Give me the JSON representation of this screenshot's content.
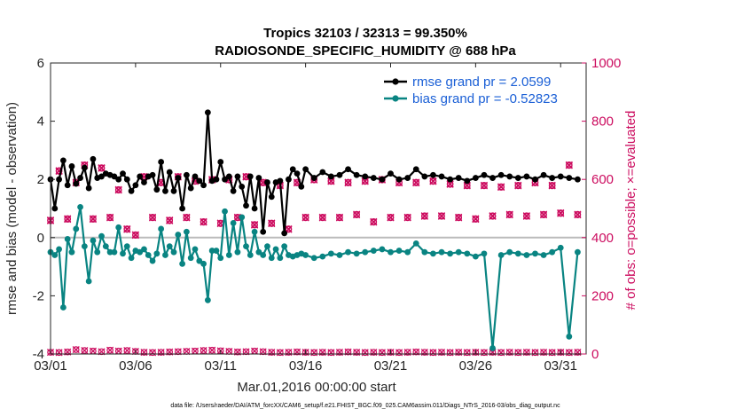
{
  "chart_data": {
    "type": "line",
    "title_line1": "Tropics 32103 / 32313 = 99.350%",
    "title_line2": "RADIOSONDE_SPECIFIC_HUMIDITY @ 688 hPa",
    "ylabel_left": "rmse and bias (model - observation)",
    "ylabel_right": "# of obs: o=possible; ×=evaluated",
    "xlabel": "Mar.01,2016 00:00:00 start",
    "footnote": "data file: /Users/raeder/DAI/ATM_forcXX/CAM6_setup/f.e21.FHIST_BGC.f09_025.CAM6assim.011/Diags_NTrS_2016-03/obs_diag_output.nc",
    "ylim_left": [
      -4,
      6
    ],
    "ylim_right": [
      0,
      1000
    ],
    "xlim": [
      0,
      31.5
    ],
    "x_tick_positions": [
      0,
      5,
      10,
      15,
      20,
      25,
      30
    ],
    "x_tick_labels": [
      "03/01",
      "03/06",
      "03/11",
      "03/16",
      "03/21",
      "03/26",
      "03/31"
    ],
    "y_left_ticks": [
      "-4",
      "-2",
      "0",
      "2",
      "4",
      "6"
    ],
    "y_right_ticks": [
      "0",
      "200",
      "400",
      "600",
      "800",
      "1000"
    ],
    "legend": [
      "rmse grand pr = 2.0599",
      "bias grand pr = -0.52823"
    ],
    "colors": {
      "rmse": "#000000",
      "bias": "#098482",
      "obs": "#cc0c5f",
      "legend_text": "#1a5fd6",
      "zero_line": "#bbbbbb"
    },
    "series": [
      {
        "name": "rmse",
        "x": [
          0.0,
          0.25,
          0.5,
          0.75,
          1.0,
          1.25,
          1.5,
          1.75,
          2.0,
          2.25,
          2.5,
          2.75,
          3.0,
          3.25,
          3.5,
          3.75,
          4.0,
          4.25,
          4.5,
          4.75,
          5.0,
          5.25,
          5.5,
          5.75,
          6.0,
          6.25,
          6.5,
          6.75,
          7.0,
          7.25,
          7.5,
          7.75,
          8.0,
          8.25,
          8.5,
          8.75,
          9.0,
          9.25,
          9.5,
          9.75,
          10.0,
          10.25,
          10.5,
          10.75,
          11.0,
          11.25,
          11.5,
          11.75,
          12.0,
          12.25,
          12.5,
          12.75,
          13.0,
          13.25,
          13.5,
          13.75,
          14.0,
          14.25,
          14.5,
          14.75,
          15.0,
          15.5,
          16.0,
          16.5,
          17.0,
          17.5,
          18.0,
          18.5,
          19.0,
          19.5,
          20.0,
          20.5,
          21.0,
          21.5,
          22.0,
          22.5,
          23.0,
          23.5,
          24.0,
          24.5,
          25.0,
          25.5,
          26.0,
          26.5,
          27.0,
          27.5,
          28.0,
          28.5,
          29.0,
          29.5,
          30.0,
          30.5,
          31.0
        ],
        "values": [
          2.0,
          1.0,
          2.0,
          2.65,
          1.8,
          2.45,
          1.85,
          2.05,
          2.4,
          1.7,
          2.7,
          2.05,
          2.1,
          2.2,
          2.15,
          2.1,
          2.0,
          2.2,
          2.0,
          1.6,
          1.8,
          2.1,
          1.9,
          2.1,
          2.15,
          1.65,
          2.6,
          1.6,
          2.25,
          1.6,
          2.05,
          1.0,
          2.15,
          1.7,
          2.1,
          1.95,
          1.8,
          4.3,
          1.95,
          2.0,
          2.6,
          2.0,
          2.1,
          1.6,
          2.1,
          1.75,
          1.1,
          2.1,
          1.0,
          2.05,
          0.2,
          1.9,
          1.4,
          1.9,
          1.95,
          0.15,
          2.0,
          2.35,
          2.2,
          1.75,
          2.35,
          2.05,
          2.25,
          2.1,
          2.15,
          2.35,
          2.15,
          2.1,
          2.05,
          2.0,
          2.2,
          2.0,
          2.05,
          2.35,
          2.1,
          2.15,
          2.1,
          2.0,
          2.05,
          1.95,
          2.05,
          2.15,
          2.05,
          2.15,
          2.1,
          2.05,
          2.1,
          2.0,
          2.15,
          2.05,
          2.1,
          2.05,
          2.0
        ]
      },
      {
        "name": "bias",
        "x": [
          0.0,
          0.25,
          0.5,
          0.75,
          1.0,
          1.25,
          1.5,
          1.75,
          2.0,
          2.25,
          2.5,
          2.75,
          3.0,
          3.25,
          3.5,
          3.75,
          4.0,
          4.25,
          4.5,
          4.75,
          5.0,
          5.25,
          5.5,
          5.75,
          6.0,
          6.25,
          6.5,
          6.75,
          7.0,
          7.25,
          7.5,
          7.75,
          8.0,
          8.25,
          8.5,
          8.75,
          9.0,
          9.25,
          9.5,
          9.75,
          10.0,
          10.25,
          10.5,
          10.75,
          11.0,
          11.25,
          11.5,
          11.75,
          12.0,
          12.25,
          12.5,
          12.75,
          13.0,
          13.25,
          13.5,
          13.75,
          14.0,
          14.25,
          14.5,
          14.75,
          15.0,
          15.5,
          16.0,
          16.5,
          17.0,
          17.5,
          18.0,
          18.5,
          19.0,
          19.5,
          20.0,
          20.5,
          21.0,
          21.5,
          22.0,
          22.5,
          23.0,
          23.5,
          24.0,
          24.5,
          25.0,
          25.5,
          26.0,
          26.5,
          27.0,
          27.5,
          28.0,
          28.5,
          29.0,
          29.5,
          30.0,
          30.5,
          31.0
        ],
        "values": [
          -0.5,
          -0.6,
          -0.4,
          -2.4,
          -0.05,
          -0.5,
          0.3,
          1.05,
          -0.3,
          -1.5,
          -0.1,
          -0.5,
          0.05,
          -0.3,
          -0.5,
          -0.5,
          0.35,
          -0.55,
          -0.3,
          -0.7,
          -0.45,
          -0.5,
          -0.4,
          -0.6,
          -0.8,
          -0.55,
          0.3,
          -0.6,
          -0.3,
          -0.5,
          0.1,
          -0.9,
          0.2,
          -0.7,
          -0.4,
          -0.8,
          -0.9,
          -2.15,
          -0.45,
          -0.45,
          -0.7,
          0.9,
          -0.6,
          0.5,
          -0.5,
          0.7,
          -0.3,
          -0.6,
          0.2,
          -0.5,
          -0.6,
          -0.3,
          -0.7,
          -0.4,
          -0.7,
          -0.3,
          -0.6,
          -0.65,
          -0.6,
          -0.55,
          -0.6,
          -0.7,
          -0.65,
          -0.55,
          -0.6,
          -0.5,
          -0.55,
          -0.5,
          -0.45,
          -0.4,
          -0.5,
          -0.45,
          -0.5,
          -0.2,
          -0.5,
          -0.55,
          -0.5,
          -0.55,
          -0.5,
          -0.55,
          -0.65,
          -0.55,
          -3.8,
          -0.6,
          -0.5,
          -0.55,
          -0.6,
          -0.55,
          -0.6,
          -0.5,
          -0.35,
          -3.4,
          -0.5
        ]
      },
      {
        "name": "obs_possible",
        "axis": "right",
        "x": [
          0.0,
          0.5,
          1.0,
          1.5,
          2.0,
          2.5,
          3.0,
          3.5,
          4.0,
          4.5,
          5.0,
          5.5,
          6.0,
          6.5,
          7.0,
          7.5,
          8.0,
          8.5,
          9.0,
          9.5,
          10.0,
          10.5,
          11.0,
          11.5,
          12.0,
          12.5,
          13.0,
          13.5,
          14.0,
          14.5,
          15.0,
          15.5,
          16.0,
          16.5,
          17.0,
          17.5,
          18.0,
          18.5,
          19.0,
          19.5,
          20.0,
          20.5,
          21.0,
          21.5,
          22.0,
          22.5,
          23.0,
          23.5,
          24.0,
          24.5,
          25.0,
          25.5,
          26.0,
          26.5,
          27.0,
          27.5,
          28.0,
          28.5,
          29.0,
          29.5,
          30.0,
          30.5,
          31.0
        ],
        "values": [
          460,
          630,
          465,
          590,
          650,
          465,
          640,
          470,
          565,
          430,
          410,
          610,
          470,
          590,
          460,
          610,
          470,
          595,
          455,
          600,
          450,
          600,
          470,
          610,
          445,
          590,
          450,
          580,
          430,
          590,
          470,
          600,
          470,
          595,
          470,
          590,
          480,
          595,
          455,
          600,
          470,
          590,
          470,
          590,
          475,
          595,
          475,
          585,
          470,
          580,
          465,
          580,
          475,
          575,
          480,
          580,
          475,
          590,
          480,
          580,
          485,
          650,
          480
        ]
      },
      {
        "name": "obs_evaluated",
        "axis": "right",
        "x": [
          0.0,
          0.5,
          1.0,
          1.5,
          2.0,
          2.5,
          3.0,
          3.5,
          4.0,
          4.5,
          5.0,
          5.5,
          6.0,
          6.5,
          7.0,
          7.5,
          8.0,
          8.5,
          9.0,
          9.5,
          10.0,
          10.5,
          11.0,
          11.5,
          12.0,
          12.5,
          13.0,
          13.5,
          14.0,
          14.5,
          15.0,
          15.5,
          16.0,
          16.5,
          17.0,
          17.5,
          18.0,
          18.5,
          19.0,
          19.5,
          20.0,
          20.5,
          21.0,
          21.5,
          22.0,
          22.5,
          23.0,
          23.5,
          24.0,
          24.5,
          25.0,
          25.5,
          26.0,
          26.5,
          27.0,
          27.5,
          28.0,
          28.5,
          29.0,
          29.5,
          30.0,
          30.5,
          31.0
        ],
        "values": [
          458,
          628,
          463,
          588,
          648,
          463,
          638,
          468,
          563,
          428,
          408,
          608,
          468,
          588,
          458,
          608,
          468,
          593,
          453,
          598,
          448,
          598,
          468,
          608,
          443,
          588,
          448,
          578,
          428,
          588,
          468,
          598,
          468,
          593,
          468,
          588,
          478,
          593,
          453,
          598,
          468,
          588,
          468,
          588,
          473,
          593,
          473,
          583,
          468,
          578,
          463,
          578,
          473,
          573,
          478,
          578,
          473,
          588,
          478,
          578,
          483,
          648,
          478
        ]
      },
      {
        "name": "obs_bottom",
        "axis": "right",
        "x": [
          0.0,
          0.5,
          1.0,
          1.5,
          2.0,
          2.5,
          3.0,
          3.5,
          4.0,
          4.5,
          5.0,
          5.5,
          6.0,
          6.5,
          7.0,
          7.5,
          8.0,
          8.5,
          9.0,
          9.5,
          10.0,
          10.5,
          11.0,
          11.5,
          12.0,
          12.5,
          13.0,
          13.5,
          14.0,
          14.5,
          15.0,
          15.5,
          16.0,
          16.5,
          17.0,
          17.5,
          18.0,
          18.5,
          19.0,
          19.5,
          20.0,
          20.5,
          21.0,
          21.5,
          22.0,
          22.5,
          23.0,
          23.5,
          24.0,
          24.5,
          25.0,
          25.5,
          26.0,
          26.5,
          27.0,
          27.5,
          28.0,
          28.5,
          29.0,
          29.5,
          30.0,
          30.5,
          31.0
        ],
        "values": [
          6,
          5,
          7,
          15,
          12,
          10,
          8,
          13,
          10,
          12,
          9,
          6,
          5,
          6,
          7,
          8,
          9,
          10,
          12,
          13,
          11,
          9,
          7,
          8,
          10,
          8,
          6,
          5,
          6,
          7,
          6,
          5,
          6,
          5,
          6,
          7,
          6,
          5,
          6,
          5,
          6,
          5,
          6,
          7,
          6,
          5,
          6,
          5,
          6,
          5,
          6,
          5,
          6,
          5,
          6,
          5,
          6,
          5,
          6,
          5,
          6,
          5,
          6
        ]
      }
    ]
  }
}
